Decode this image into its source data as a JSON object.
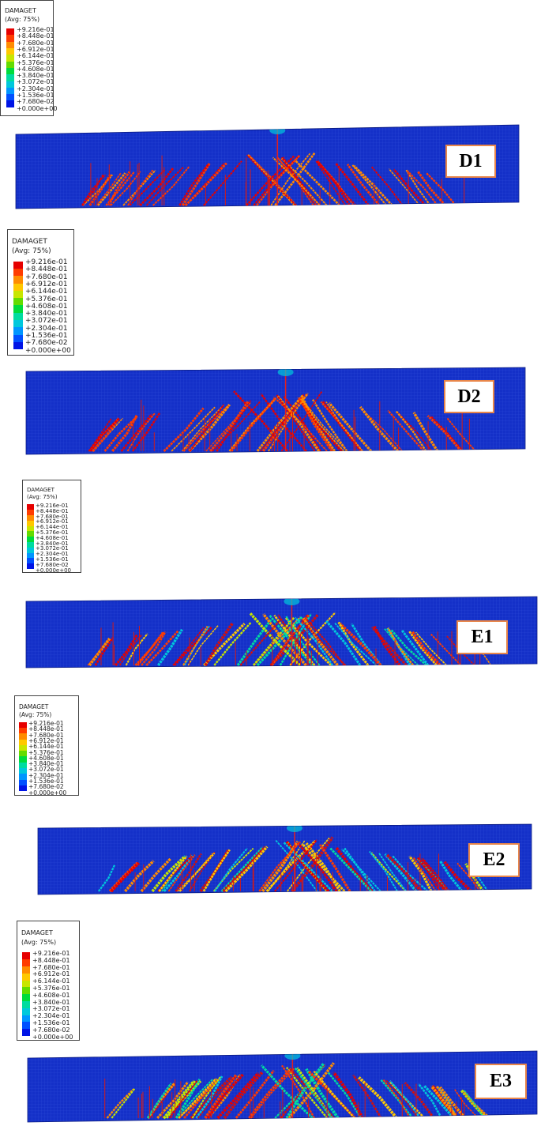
{
  "legend": {
    "title": "DAMAGET",
    "subtitle": "(Avg: 75%)",
    "values": [
      "+9.216e-01",
      "+8.448e-01",
      "+7.680e-01",
      "+6.912e-01",
      "+6.144e-01",
      "+5.376e-01",
      "+4.608e-01",
      "+3.840e-01",
      "+3.072e-01",
      "+2.304e-01",
      "+1.536e-01",
      "+7.680e-02",
      "+0.000e+00"
    ],
    "colors": [
      "#e60000",
      "#ff3c00",
      "#ff8c00",
      "#ffc800",
      "#c8e600",
      "#64dc00",
      "#00dc3c",
      "#00dca0",
      "#00c8dc",
      "#0096ff",
      "#0050ff",
      "#0014e6",
      "#0000c8"
    ]
  },
  "panels": [
    {
      "label": "D1",
      "damage_level": 0.55
    },
    {
      "label": "D2",
      "damage_level": 0.65
    },
    {
      "label": "E1",
      "damage_level": 0.75
    },
    {
      "label": "E2",
      "damage_level": 0.8
    },
    {
      "label": "E3",
      "damage_level": 0.85
    }
  ],
  "mesh_colors": {
    "background": "#1430c8",
    "grid": "#2a48d8"
  }
}
